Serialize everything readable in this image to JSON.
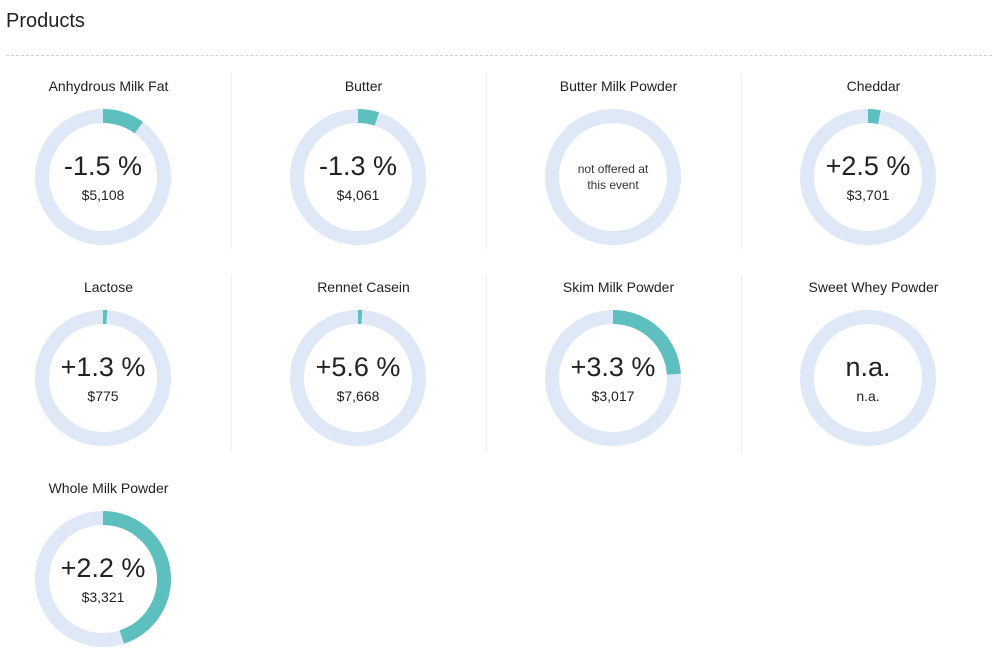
{
  "header": {
    "title": "Products"
  },
  "colors": {
    "ring_track": "#dfe8f6",
    "ring_fill": "#5dbfbe",
    "text": "#222222"
  },
  "products": [
    {
      "name": "Anhydrous Milk Fat",
      "change": "-1.5 %",
      "price": "$5,108",
      "fill_fraction": 0.1,
      "offered": true
    },
    {
      "name": "Butter",
      "change": "-1.3 %",
      "price": "$4,061",
      "fill_fraction": 0.05,
      "offered": true
    },
    {
      "name": "Butter Milk Powder",
      "change": "",
      "price": "",
      "fill_fraction": 0,
      "offered": false,
      "note": "not offered at this event"
    },
    {
      "name": "Cheddar",
      "change": "+2.5 %",
      "price": "$3,701",
      "fill_fraction": 0.03,
      "offered": true
    },
    {
      "name": "Lactose",
      "change": "+1.3 %",
      "price": "$775",
      "fill_fraction": 0.01,
      "offered": true
    },
    {
      "name": "Rennet Casein",
      "change": "+5.6 %",
      "price": "$7,668",
      "fill_fraction": 0.01,
      "offered": true
    },
    {
      "name": "Skim Milk Powder",
      "change": "+3.3 %",
      "price": "$3,017",
      "fill_fraction": 0.24,
      "offered": true
    },
    {
      "name": "Sweet Whey Powder",
      "change": "n.a.",
      "price": "n.a.",
      "fill_fraction": 0,
      "offered": true
    },
    {
      "name": "Whole Milk Powder",
      "change": "+2.2 %",
      "price": "$3,321",
      "fill_fraction": 0.45,
      "offered": true
    }
  ]
}
